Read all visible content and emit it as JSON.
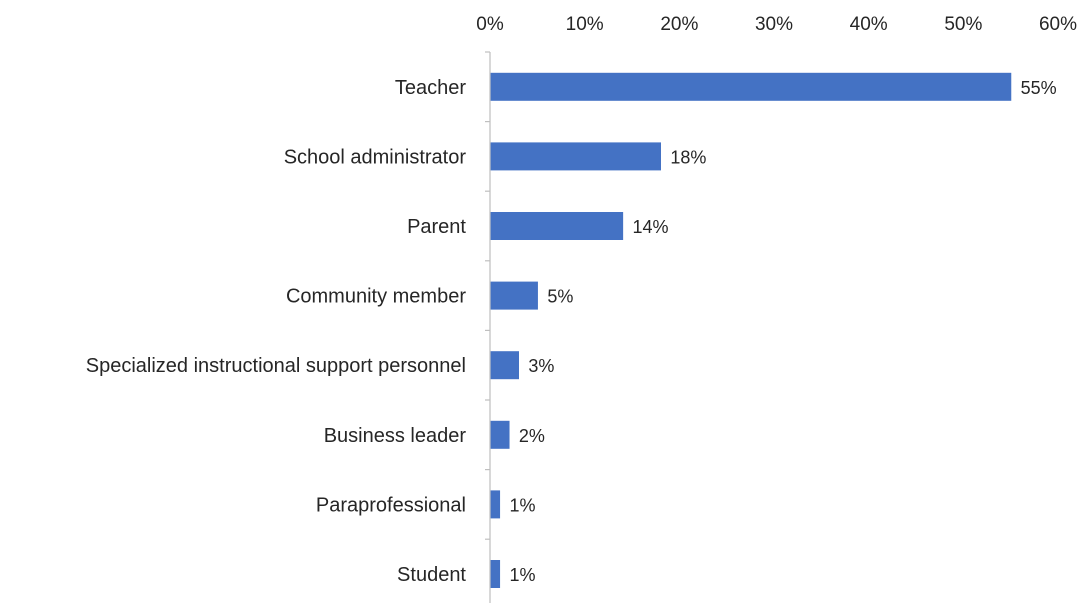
{
  "chart_data": {
    "type": "bar",
    "orientation": "horizontal",
    "categories": [
      "Teacher",
      "School administrator",
      "Parent",
      "Community member",
      "Specialized instructional support personnel",
      "Business leader",
      "Paraprofessional",
      "Student"
    ],
    "values": [
      55,
      18,
      14,
      5,
      3,
      2,
      1,
      1
    ],
    "data_labels": [
      "55%",
      "18%",
      "14%",
      "5%",
      "3%",
      "2%",
      "1%",
      "1%"
    ],
    "x_ticks": [
      "0%",
      "10%",
      "20%",
      "30%",
      "40%",
      "50%",
      "60%"
    ],
    "xlim": [
      0,
      60
    ],
    "x_axis_position": "top",
    "title": "",
    "xlabel": "",
    "ylabel": "",
    "grid": false,
    "legend": "none",
    "bar_color": "#4472C4"
  }
}
